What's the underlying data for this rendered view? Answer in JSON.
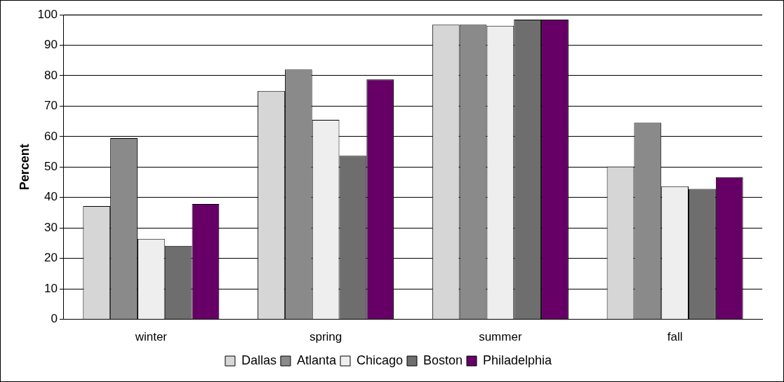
{
  "chart_data": {
    "type": "bar",
    "ylabel": "Percent",
    "categories": [
      "winter",
      "spring",
      "summer",
      "fall"
    ],
    "series": [
      {
        "name": "Dallas",
        "color": "#d6d6d6",
        "values": [
          37.2,
          75,
          96.7,
          50.2
        ]
      },
      {
        "name": "Atlanta",
        "color": "#8a8a8a",
        "values": [
          59.5,
          82,
          96.7,
          64.5
        ]
      },
      {
        "name": "Chicago",
        "color": "#eeeeee",
        "values": [
          26.4,
          65.5,
          96.4,
          43.7
        ]
      },
      {
        "name": "Boston",
        "color": "#6e6e6e",
        "values": [
          24.1,
          53.7,
          98.4,
          42.8
        ]
      },
      {
        "name": "Philadelphia",
        "color": "#660066",
        "values": [
          37.9,
          78.8,
          98.4,
          46.7
        ]
      }
    ],
    "ylim": [
      0,
      100
    ],
    "yticks": [
      0,
      10,
      20,
      30,
      40,
      50,
      60,
      70,
      80,
      90,
      100
    ],
    "grid": "y",
    "legend": "bottom"
  }
}
